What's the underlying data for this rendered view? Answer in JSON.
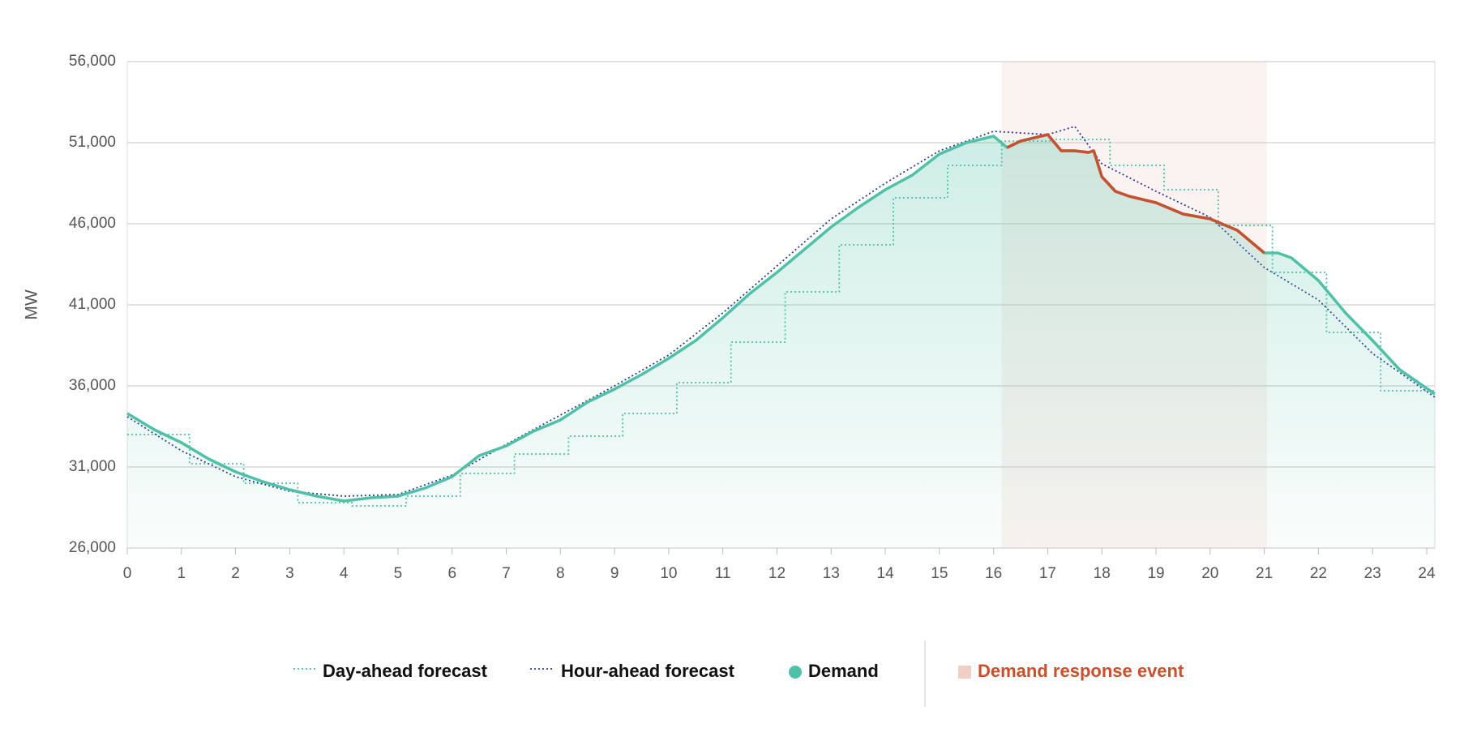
{
  "chart_data": {
    "type": "line",
    "y_label": "MW",
    "xlim": [
      0,
      24.15
    ],
    "xticks": [
      0,
      1,
      2,
      3,
      4,
      5,
      6,
      7,
      8,
      9,
      10,
      11,
      12,
      13,
      14,
      15,
      16,
      17,
      18,
      19,
      20,
      21,
      22,
      23,
      24
    ],
    "ylim": [
      26000,
      56000
    ],
    "yticks": [
      {
        "value": 26000,
        "label": "26,000"
      },
      {
        "value": 31000,
        "label": "31,000"
      },
      {
        "value": 36000,
        "label": "36,000"
      },
      {
        "value": 41000,
        "label": "41,000"
      },
      {
        "value": 46000,
        "label": "46,000"
      },
      {
        "value": 51000,
        "label": "51,000"
      },
      {
        "value": 56000,
        "label": "56,000"
      }
    ],
    "grid": true,
    "event": {
      "label": "Demand response event",
      "start": 16.15,
      "end": 21.05,
      "color": "#c8502e",
      "shade": "#fbf3f1",
      "swatch": "#f0cfc4"
    },
    "series": [
      {
        "name": "Day-ahead forecast",
        "color": "#4fc1a6",
        "style": "dotted",
        "step": true,
        "x": [
          0,
          1.15,
          2.15,
          3.15,
          4.15,
          5.15,
          6.15,
          7.15,
          8.15,
          9.15,
          10.15,
          11.15,
          12.15,
          13.15,
          14.15,
          15.15,
          16.15,
          17.15,
          18.15,
          19.15,
          20.15,
          21.15,
          22.15,
          23.15
        ],
        "values": [
          33000,
          31200,
          30000,
          28800,
          28600,
          29200,
          30600,
          31800,
          32900,
          34300,
          36200,
          38700,
          41800,
          44700,
          47600,
          49600,
          51100,
          51200,
          49600,
          48100,
          45900,
          43000,
          39300,
          35700
        ]
      },
      {
        "name": "Hour-ahead forecast",
        "color": "#2b3a9a",
        "style": "dotted",
        "x": [
          0,
          1,
          2,
          3,
          4,
          5,
          6,
          7,
          8,
          9,
          10,
          11,
          12,
          13,
          14,
          15,
          16,
          17,
          17.5,
          18,
          19,
          20,
          21,
          22,
          23,
          24.15
        ],
        "values": [
          34100,
          32000,
          30400,
          29500,
          29200,
          29300,
          30500,
          32400,
          34200,
          36000,
          37900,
          40500,
          43400,
          46300,
          48500,
          50500,
          51700,
          51500,
          52000,
          49700,
          48000,
          46400,
          43300,
          41300,
          38000,
          35300
        ]
      },
      {
        "name": "Demand",
        "color": "#4fc1a6",
        "style": "solid",
        "area": true,
        "x": [
          0,
          0.5,
          1,
          1.5,
          2,
          2.5,
          3,
          3.5,
          4,
          4.5,
          5,
          5.5,
          6,
          6.5,
          7,
          7.5,
          8,
          8.5,
          9,
          9.5,
          10,
          10.5,
          11,
          11.5,
          12,
          12.5,
          13,
          13.5,
          14,
          14.5,
          15,
          15.5,
          16,
          16.25,
          16.5,
          17,
          17.25,
          17.5,
          17.75,
          17.85,
          18,
          18.25,
          18.5,
          19,
          19.5,
          20,
          20.5,
          21,
          21.25,
          21.5,
          22,
          22.5,
          23,
          23.5,
          24.15
        ],
        "values": [
          34300,
          33300,
          32500,
          31500,
          30700,
          30100,
          29600,
          29200,
          28900,
          29100,
          29200,
          29700,
          30400,
          31700,
          32300,
          33200,
          33900,
          35000,
          35800,
          36700,
          37700,
          38800,
          40200,
          41700,
          43000,
          44400,
          45800,
          47000,
          48100,
          49000,
          50300,
          51000,
          51400,
          50700,
          51100,
          51500,
          50500,
          50500,
          50400,
          50500,
          48900,
          48000,
          47700,
          47300,
          46600,
          46300,
          45600,
          44200,
          44200,
          43900,
          42500,
          40500,
          38800,
          37000,
          35500
        ]
      }
    ]
  }
}
